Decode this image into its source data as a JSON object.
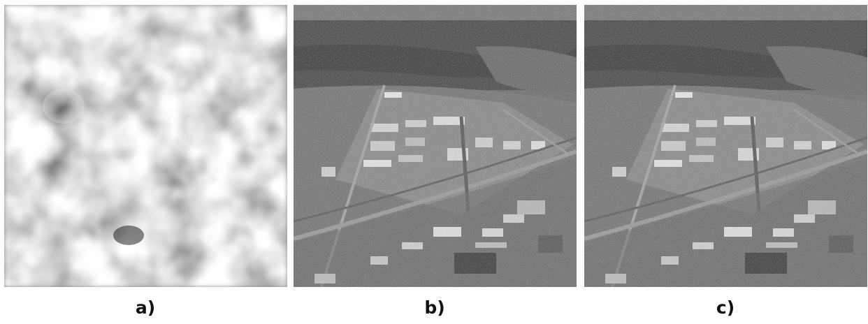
{
  "panels": [
    {
      "label": "a)",
      "content": "noise-blur"
    },
    {
      "label": "b)",
      "content": "aerial-photo"
    },
    {
      "label": "c)",
      "content": "aerial-photo"
    }
  ],
  "colors": {
    "background": "#ffffff",
    "caption": "#111111"
  }
}
